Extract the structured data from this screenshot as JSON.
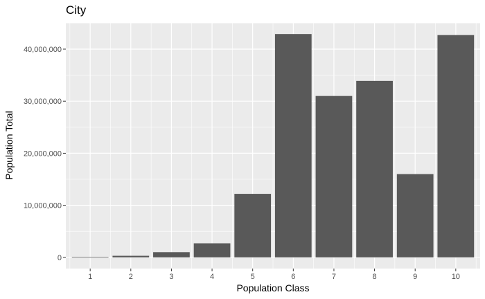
{
  "chart_data": {
    "type": "bar",
    "title": "City",
    "xlabel": "Population Class",
    "ylabel": "Population Total",
    "categories": [
      "1",
      "2",
      "3",
      "4",
      "5",
      "6",
      "7",
      "8",
      "9",
      "10"
    ],
    "values": [
      100000,
      300000,
      1000000,
      2700000,
      12200000,
      42900000,
      31000000,
      33900000,
      16000000,
      42700000
    ],
    "yticks": [
      0,
      10000000,
      20000000,
      30000000,
      40000000
    ],
    "ytick_labels": [
      "0",
      "10,000,000",
      "20,000,000",
      "30,000,000",
      "40,000,000"
    ],
    "ylim": [
      -2150000,
      45050000
    ],
    "grid": true,
    "colors": {
      "panel_background": "#ebebeb",
      "grid_major": "#ffffff",
      "bar_fill": "#595959",
      "tick_text": "#4d4d4d"
    }
  }
}
